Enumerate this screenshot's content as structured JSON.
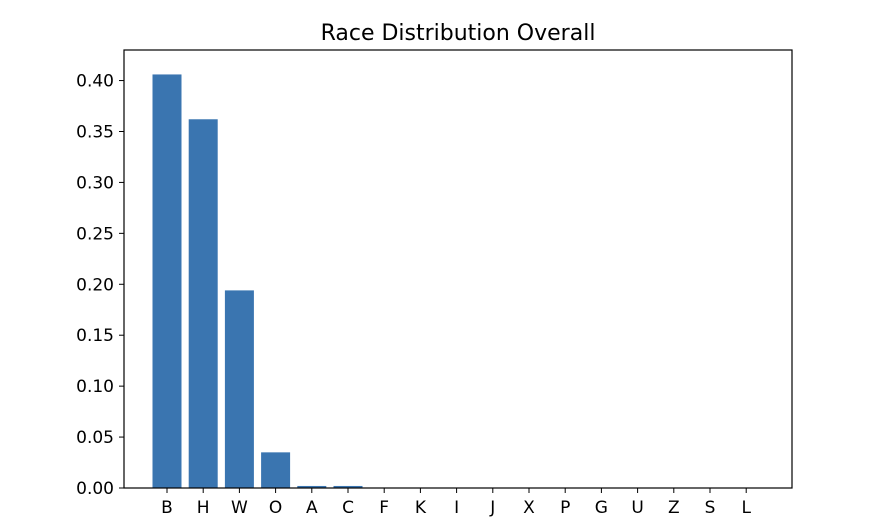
{
  "chart_data": {
    "type": "bar",
    "title": "Race Distribution Overall",
    "xlabel": "",
    "ylabel": "",
    "categories": [
      "B",
      "H",
      "W",
      "O",
      "A",
      "C",
      "F",
      "K",
      "I",
      "J",
      "X",
      "P",
      "G",
      "U",
      "Z",
      "S",
      "L"
    ],
    "values": [
      0.406,
      0.362,
      0.194,
      0.035,
      0.002,
      0.002,
      0.0003,
      0.0002,
      0.0001,
      0.0001,
      0.0001,
      0.0001,
      0.0,
      0.0,
      0.0,
      0.0,
      0.0
    ],
    "ylim": [
      0,
      0.43
    ],
    "yticks": [
      "0.00",
      "0.05",
      "0.10",
      "0.15",
      "0.20",
      "0.25",
      "0.30",
      "0.35",
      "0.40"
    ],
    "bar_color": "#3a75b0",
    "grid": false,
    "legend": "none"
  }
}
